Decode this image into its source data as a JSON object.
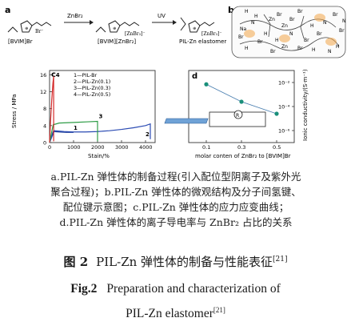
{
  "panel_a": {
    "letter": "a",
    "monomer_label": "[BVIM]Br",
    "complex_label": "[BVIM][ZnBr₂]",
    "elastomer_label": "PIL-Zn elastomer",
    "arrow1_label": "ZnBr₂",
    "arrow2_label": "UV",
    "monomer_ion": "Br⁻",
    "complex_ion": "[ZnBr₃]⁻",
    "elastomer_ion": "[ZnBr₃]⁻"
  },
  "panel_b": {
    "letter": "b",
    "atoms": [
      "H",
      "H",
      "N",
      "Na",
      "H",
      "Br",
      "Br",
      "Zn",
      "Br",
      "Br",
      "N",
      "H",
      "Br",
      "N",
      "Br",
      "Br",
      "Zn",
      "Br",
      "H",
      "Br",
      "H",
      "N",
      "Br",
      "H",
      "Zn",
      "Br",
      "N",
      "H"
    ]
  },
  "chart_data": [
    {
      "type": "line",
      "panel": "c",
      "xlabel": "Stain/%",
      "ylabel": "Stress / MPa",
      "xticks": [
        "0",
        "1000",
        "2000",
        "3000",
        "4000"
      ],
      "yticks": [
        "0",
        "4",
        "8",
        "12",
        "16"
      ],
      "xlim": [
        0,
        4400
      ],
      "ylim": [
        0,
        17
      ],
      "legend": [
        "1—PIL-Br",
        "2—PIL-Zn(0.1)",
        "3—PIL-Zn(0.3)",
        "4—PIL-Zn(0.5)"
      ],
      "curve_labels": [
        "1",
        "2",
        "3",
        "4"
      ],
      "series": [
        {
          "name": "1—PIL-Br",
          "color": "#1f3f99",
          "x": [
            0,
            150,
            400,
            700,
            1000
          ],
          "y": [
            0,
            2.6,
            2.5,
            2.4,
            2.4
          ]
        },
        {
          "name": "2—PIL-Zn(0.1)",
          "color": "#2b4bb3",
          "x": [
            0,
            200,
            600,
            1000,
            1500,
            2000,
            2500,
            3000,
            3500,
            4000,
            4200,
            4200
          ],
          "y": [
            0,
            2.8,
            2.6,
            2.5,
            2.5,
            2.6,
            2.8,
            3.1,
            3.5,
            4.0,
            4.4,
            0.8
          ]
        },
        {
          "name": "3—PIL-Zn(0.3)",
          "color": "#2e9c46",
          "x": [
            0,
            150,
            400,
            800,
            1200,
            1600,
            2000,
            2000
          ],
          "y": [
            0,
            4.2,
            4.6,
            4.7,
            4.8,
            4.9,
            5.0,
            0.3
          ]
        },
        {
          "name": "4—PIL-Zn(0.5)",
          "color": "#d42a2a",
          "x": [
            0,
            40,
            90,
            140,
            170,
            170
          ],
          "y": [
            0,
            5,
            10,
            14,
            15.6,
            0.3
          ]
        }
      ]
    },
    {
      "type": "scatter",
      "panel": "d",
      "xlabel": "molar conten of ZnBr₂ to [BVIM]Br",
      "ylabel": "Ionic conductivity/(S·m⁻¹)",
      "xticks": [
        "0.1",
        "0.3",
        "0.5"
      ],
      "yticks": [
        "10⁻²",
        "10⁻⁴",
        "10⁻⁶"
      ],
      "xlim": [
        0,
        0.6
      ],
      "ylim_log10": [
        -7,
        -1
      ],
      "x": [
        0.1,
        0.3,
        0.5
      ],
      "log10_y": [
        -2.15,
        -3.6,
        -4.6
      ],
      "color": "#1a8f7a"
    }
  ],
  "caption": {
    "lines": [
      "a.PIL-Zn 弹性体的制备过程(引入配位型阴离子及紫外光",
      "聚合过程)；b.PIL-Zn 弹性体的微观结构及分子间氢键、",
      "配位键示意图；c.PIL-Zn 弹性体的应力应变曲线；",
      "d.PIL-Zn 弹性体的离子导电率与 ZnBr₂ 占比的关系"
    ],
    "cn_label": "图 2",
    "cn_title": "PIL-Zn 弹性体的制备与性能表征",
    "cn_ref": "[21]",
    "en_label": "Fig.2",
    "en_title_line1": "Preparation and characterization of",
    "en_title_line2": "PIL-Zn elastomer",
    "en_ref": "[21]"
  }
}
